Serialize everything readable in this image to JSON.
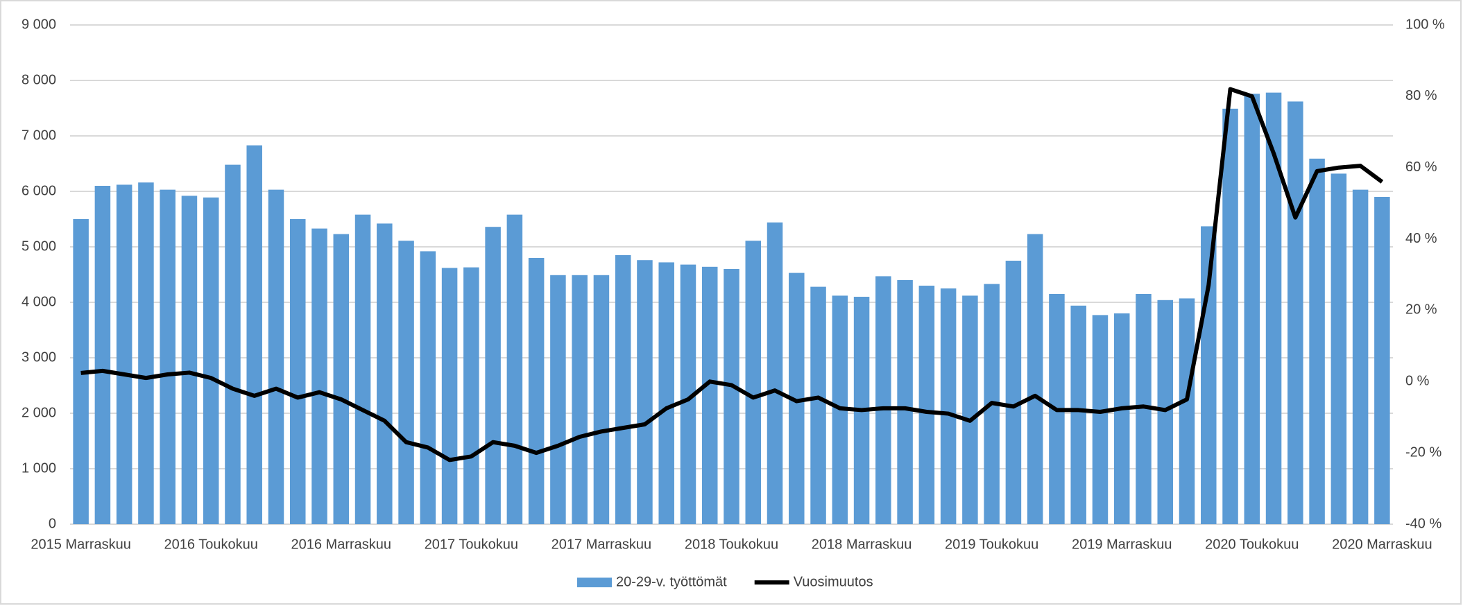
{
  "chart_data": {
    "type": "bar-line",
    "categories": [
      "2015 Marraskuu",
      null,
      null,
      null,
      null,
      null,
      "2016 Toukokuu",
      null,
      null,
      null,
      null,
      null,
      "2016 Marraskuu",
      null,
      null,
      null,
      null,
      null,
      "2017 Toukokuu",
      null,
      null,
      null,
      null,
      null,
      "2017 Marraskuu",
      null,
      null,
      null,
      null,
      null,
      "2018 Toukokuu",
      null,
      null,
      null,
      null,
      null,
      "2018 Marraskuu",
      null,
      null,
      null,
      null,
      null,
      "2019 Toukokuu",
      null,
      null,
      null,
      null,
      null,
      "2019 Marraskuu",
      null,
      null,
      null,
      null,
      null,
      "2020 Toukokuu",
      null,
      null,
      null,
      null,
      null,
      "2020 Marraskuu"
    ],
    "series": [
      {
        "name": "20-29-v. työttömät",
        "type": "bar",
        "color": "#5b9bd5",
        "axis": "y",
        "values": [
          5500,
          6100,
          6120,
          6160,
          6030,
          5920,
          5890,
          6480,
          6830,
          6030,
          5500,
          5330,
          5230,
          5580,
          5420,
          5110,
          4920,
          4620,
          4630,
          5360,
          5580,
          4800,
          4490,
          4490,
          4490,
          4850,
          4760,
          4720,
          4680,
          4640,
          4600,
          5110,
          5440,
          4530,
          4280,
          4120,
          4100,
          4470,
          4400,
          4300,
          4250,
          4120,
          4330,
          4750,
          5230,
          4150,
          3940,
          3770,
          3800,
          4150,
          4040,
          4070,
          5370,
          7490,
          7760,
          7780,
          7620,
          6590,
          6320,
          6030,
          5900
        ]
      },
      {
        "name": "Vuosimuutos",
        "type": "line",
        "color": "#000000",
        "axis": "y2",
        "values": [
          2.4,
          3,
          2,
          1,
          2,
          2.5,
          1,
          -2,
          -4,
          -2,
          -4.5,
          -3,
          -5,
          -8,
          -11,
          -17,
          -18.5,
          -22,
          -21,
          -17,
          -18,
          -20,
          -18,
          -15.5,
          -14,
          -13,
          -12,
          -7.5,
          -5,
          0,
          -1,
          -4.5,
          -2.5,
          -5.5,
          -4.5,
          -7.5,
          -8,
          -7.5,
          -7.5,
          -8.5,
          -9,
          -11,
          -6,
          -7,
          -4,
          -8,
          -8,
          -8.5,
          -7.5,
          -7,
          -8,
          -5,
          27,
          82,
          80,
          64,
          46,
          59,
          60,
          60.5,
          56
        ]
      }
    ],
    "ylim": [
      0,
      9000
    ],
    "yticks": [
      0,
      {
        "value": 1000,
        "label": "1 000"
      },
      {
        "value": 2000,
        "label": "2 000"
      },
      {
        "value": 3000,
        "label": "3 000"
      },
      {
        "value": 4000,
        "label": "4 000"
      },
      {
        "value": 5000,
        "label": "5 000"
      },
      {
        "value": 6000,
        "label": "6 000"
      },
      {
        "value": 7000,
        "label": "7 000"
      },
      {
        "value": 8000,
        "label": "8 000"
      },
      {
        "value": 9000,
        "label": "9 000"
      }
    ],
    "y2lim": [
      -40,
      100
    ],
    "y2ticks": [
      {
        "value": -40,
        "label": "-40 %"
      },
      {
        "value": -20,
        "label": "-20 %"
      },
      {
        "value": 0,
        "label": "0 %"
      },
      {
        "value": 20,
        "label": "20 %"
      },
      {
        "value": 40,
        "label": "40 %"
      },
      {
        "value": 60,
        "label": "60 %"
      },
      {
        "value": 80,
        "label": "80 %"
      },
      {
        "value": 100,
        "label": "100 %"
      }
    ],
    "grid": true,
    "legend": "bottom"
  }
}
